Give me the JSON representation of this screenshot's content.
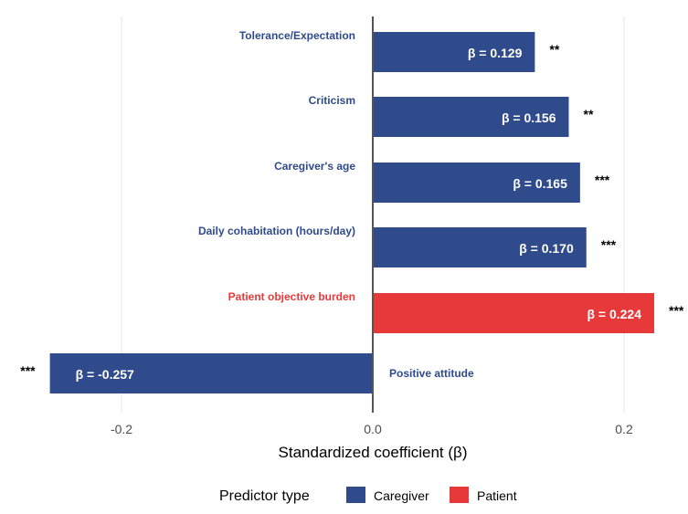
{
  "chart_data": {
    "type": "bar",
    "orientation": "horizontal",
    "xlabel": "Standardized coefficient (β)",
    "xlim": [
      -0.27,
      0.235
    ],
    "xticks": [
      -0.2,
      0.0,
      0.2
    ],
    "xtick_labels": [
      "-0.2",
      "0.0",
      "0.2"
    ],
    "grid": true,
    "legend": {
      "title": "Predictor type",
      "placement": "bottom",
      "entries": [
        {
          "name": "Caregiver",
          "color": "#2f4b8c"
        },
        {
          "name": "Patient",
          "color": "#e8393a"
        }
      ]
    },
    "bars": [
      {
        "category": "Tolerance/Expectation",
        "value": 0.129,
        "label": "β = 0.129",
        "significance": "**",
        "type": "Caregiver"
      },
      {
        "category": "Criticism",
        "value": 0.156,
        "label": "β = 0.156",
        "significance": "**",
        "type": "Caregiver"
      },
      {
        "category": "Caregiver's age",
        "value": 0.165,
        "label": "β = 0.165",
        "significance": "***",
        "type": "Caregiver"
      },
      {
        "category": "Daily cohabitation (hours/day)",
        "value": 0.17,
        "label": "β = 0.170",
        "significance": "***",
        "type": "Caregiver"
      },
      {
        "category": "Patient objective burden",
        "value": 0.224,
        "label": "β = 0.224",
        "significance": "***",
        "type": "Patient"
      },
      {
        "category": "Positive attitude",
        "value": -0.257,
        "label": "β = -0.257",
        "significance": "***",
        "type": "Caregiver"
      }
    ]
  }
}
